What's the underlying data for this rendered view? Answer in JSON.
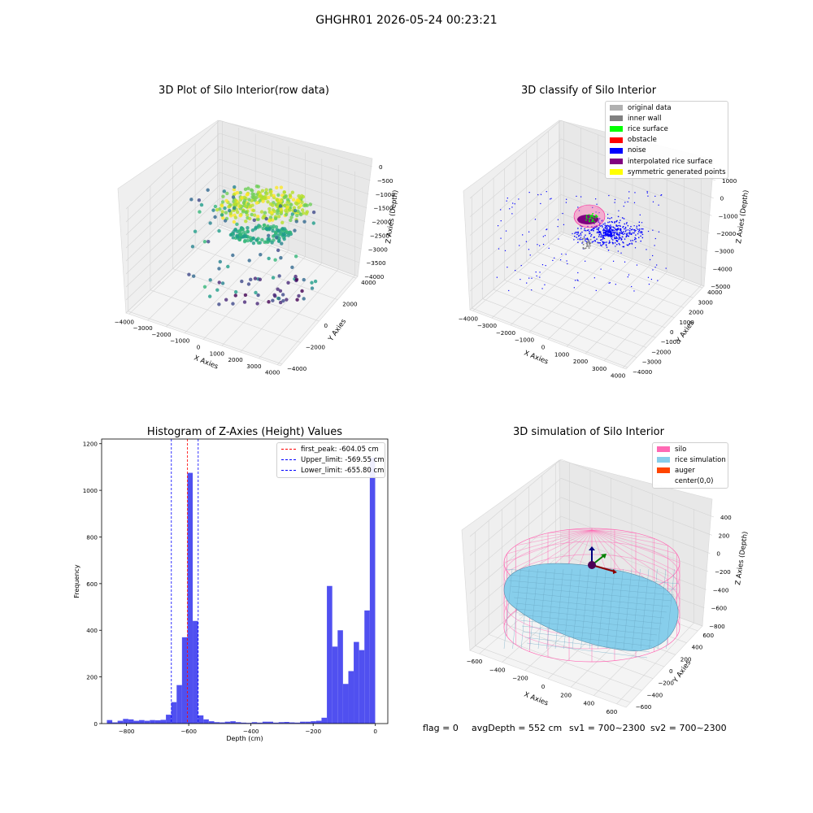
{
  "suptitle": "GHGHR01 2026-05-24 00:23:21",
  "panel1": {
    "title": "3D Plot of Silo Interior(row data)",
    "x_label": "X Axies",
    "y_label": "Y Axies",
    "z_label": "Z Axies (Depth)",
    "x_ticks": [
      "−4000",
      "−3000",
      "−2000",
      "−1000",
      "0",
      "1000",
      "2000",
      "3000",
      "4000"
    ],
    "y_ticks": [
      "−4000",
      "−2000",
      "0",
      "2000",
      "4000"
    ],
    "z_ticks": [
      "0",
      "−500",
      "−1000",
      "−1500",
      "−2000",
      "−2500",
      "−3000",
      "−3500",
      "−4000"
    ]
  },
  "panel2": {
    "title": "3D classify of Silo Interior",
    "x_label": "X Axies",
    "y_label": "Y Axies",
    "z_label": "Z Axies (Depth)",
    "x_ticks": [
      "−4000",
      "−3000",
      "−2000",
      "−1000",
      "0",
      "1000",
      "2000",
      "3000",
      "4000"
    ],
    "y_ticks": [
      "−4000",
      "−3000",
      "−2000",
      "−1000",
      "0",
      "1000",
      "2000",
      "3000",
      "4000"
    ],
    "z_ticks": [
      "1000",
      "0",
      "−1000",
      "−2000",
      "−3000",
      "−4000",
      "−5000"
    ],
    "legend": [
      {
        "label": "original data",
        "color": "#b0b0b0"
      },
      {
        "label": "inner wall",
        "color": "#808080"
      },
      {
        "label": "rice surface",
        "color": "#00ff00"
      },
      {
        "label": "obstacle",
        "color": "#ff0000"
      },
      {
        "label": "noise",
        "color": "#0000ff"
      },
      {
        "label": "interpolated rice surface",
        "color": "#800080"
      },
      {
        "label": "symmetric generated points",
        "color": "#ffff00"
      }
    ]
  },
  "panel3": {
    "title": "Histogram of Z-Axies (Height) Values",
    "legend": [
      {
        "label": "first_peak: -604.05 cm",
        "color": "#ff0000"
      },
      {
        "label": "Upper_limit: -569.55 cm",
        "color": "#0000ff"
      },
      {
        "label": "Lower_limit: -655.80 cm",
        "color": "#0000ff"
      }
    ]
  },
  "panel4": {
    "title": "3D simulation of Silo Interior",
    "x_label": "X Axies",
    "y_label": "Y Axies",
    "z_label": "Z Axies (Depth)",
    "x_ticks": [
      "−600",
      "−400",
      "−200",
      "0",
      "200",
      "400",
      "600"
    ],
    "y_ticks": [
      "−600",
      "−400",
      "−200",
      "0",
      "200",
      "400",
      "600"
    ],
    "z_ticks": [
      "400",
      "200",
      "0",
      "−200",
      "−400",
      "−600",
      "−800"
    ],
    "legend": [
      {
        "label": "silo",
        "color": "#ff69b4"
      },
      {
        "label": "rice simulation",
        "color": "#87ceeb"
      },
      {
        "label": "auger",
        "color": "#ff4500"
      },
      {
        "label": "center(0,0)",
        "color": "#ffffff"
      }
    ]
  },
  "footer": {
    "flag": "flag = 0",
    "avg_depth": "avgDepth = 552 cm",
    "sv1": "sv1 = 700~2300",
    "sv2": "sv2 = 700~2300"
  },
  "chart_data": [
    {
      "type": "scatter",
      "title": "3D Plot of Silo Interior(row data)",
      "xlabel": "X Axies",
      "ylabel": "Y Axies",
      "zlabel": "Z Axies (Depth)",
      "xlim": [
        -4000,
        4000
      ],
      "ylim": [
        -4000,
        4000
      ],
      "zlim": [
        -4000,
        0
      ],
      "colormap": "viridis",
      "grid": true
    },
    {
      "type": "scatter",
      "title": "3D classify of Silo Interior",
      "xlabel": "X Axies",
      "ylabel": "Y Axies",
      "zlabel": "Z Axies (Depth)",
      "xlim": [
        -4000,
        4000
      ],
      "ylim": [
        -4000,
        4000
      ],
      "zlim": [
        -5000,
        1000
      ],
      "series": [
        {
          "name": "original data",
          "color": "#b0b0b0"
        },
        {
          "name": "inner wall",
          "color": "#808080"
        },
        {
          "name": "rice surface",
          "color": "#00ff00"
        },
        {
          "name": "obstacle",
          "color": "#ff0000"
        },
        {
          "name": "noise",
          "color": "#0000ff"
        },
        {
          "name": "interpolated rice surface",
          "color": "#800080"
        },
        {
          "name": "symmetric generated points",
          "color": "#ffff00"
        }
      ],
      "legend_position": "top-right",
      "grid": true
    },
    {
      "type": "bar",
      "title": "Histogram of Z-Axies (Height) Values",
      "xlabel": "Depth (cm)",
      "ylabel": "Frequency",
      "xlim": [
        -880,
        40
      ],
      "ylim": [
        0,
        1220
      ],
      "x_ticks": [
        -800,
        -600,
        -400,
        -200,
        0
      ],
      "y_ticks": [
        0,
        200,
        400,
        600,
        800,
        1000,
        1200
      ],
      "bin_width": 17.25,
      "bins": [
        {
          "x": -854.4,
          "count": 15
        },
        {
          "x": -837.2,
          "count": 5
        },
        {
          "x": -820.0,
          "count": 12
        },
        {
          "x": -802.7,
          "count": 20
        },
        {
          "x": -785.5,
          "count": 18
        },
        {
          "x": -768.2,
          "count": 12
        },
        {
          "x": -751.0,
          "count": 15
        },
        {
          "x": -733.7,
          "count": 12
        },
        {
          "x": -716.5,
          "count": 15
        },
        {
          "x": -699.2,
          "count": 14
        },
        {
          "x": -682.0,
          "count": 16
        },
        {
          "x": -664.7,
          "count": 38
        },
        {
          "x": -647.5,
          "count": 92
        },
        {
          "x": -630.2,
          "count": 165
        },
        {
          "x": -613.0,
          "count": 370
        },
        {
          "x": -595.7,
          "count": 1075
        },
        {
          "x": -578.5,
          "count": 440
        },
        {
          "x": -561.2,
          "count": 35
        },
        {
          "x": -544.0,
          "count": 18
        },
        {
          "x": -526.7,
          "count": 10
        },
        {
          "x": -509.5,
          "count": 6
        },
        {
          "x": -492.2,
          "count": 5
        },
        {
          "x": -475.0,
          "count": 8
        },
        {
          "x": -457.7,
          "count": 10
        },
        {
          "x": -440.5,
          "count": 6
        },
        {
          "x": -423.2,
          "count": 4
        },
        {
          "x": -406.0,
          "count": 3
        },
        {
          "x": -388.7,
          "count": 6
        },
        {
          "x": -371.5,
          "count": 4
        },
        {
          "x": -354.2,
          "count": 8
        },
        {
          "x": -337.0,
          "count": 8
        },
        {
          "x": -319.7,
          "count": 4
        },
        {
          "x": -302.5,
          "count": 6
        },
        {
          "x": -285.2,
          "count": 7
        },
        {
          "x": -268.0,
          "count": 5
        },
        {
          "x": -250.7,
          "count": 4
        },
        {
          "x": -233.5,
          "count": 8
        },
        {
          "x": -216.2,
          "count": 8
        },
        {
          "x": -199.0,
          "count": 10
        },
        {
          "x": -181.7,
          "count": 12
        },
        {
          "x": -164.5,
          "count": 25
        },
        {
          "x": -147.2,
          "count": 590
        },
        {
          "x": -130.0,
          "count": 330
        },
        {
          "x": -112.7,
          "count": 400
        },
        {
          "x": -95.5,
          "count": 170
        },
        {
          "x": -78.2,
          "count": 225
        },
        {
          "x": -61.0,
          "count": 350
        },
        {
          "x": -43.7,
          "count": 315
        },
        {
          "x": -26.5,
          "count": 485
        },
        {
          "x": -9.2,
          "count": 1140
        }
      ],
      "vlines": [
        {
          "name": "first_peak: -604.05 cm",
          "x": -604.05,
          "color": "#ff0000"
        },
        {
          "name": "Upper_limit: -569.55 cm",
          "x": -569.55,
          "color": "#0000ff"
        },
        {
          "name": "Lower_limit: -655.80 cm",
          "x": -655.8,
          "color": "#0000ff"
        }
      ],
      "bar_color": "#5050f0",
      "legend_position": "top-right"
    },
    {
      "type": "surface",
      "title": "3D simulation of Silo Interior",
      "xlabel": "X Axies",
      "ylabel": "Y Axies",
      "zlabel": "Z Axies (Depth)",
      "xlim": [
        -700,
        700
      ],
      "ylim": [
        -700,
        700
      ],
      "zlim": [
        -900,
        500
      ],
      "series": [
        {
          "name": "silo",
          "color": "#ff69b4"
        },
        {
          "name": "rice simulation",
          "color": "#87ceeb"
        },
        {
          "name": "auger",
          "color": "#ff4500"
        },
        {
          "name": "center(0,0)",
          "color": "#ffffff"
        }
      ],
      "legend_position": "top-right"
    }
  ]
}
